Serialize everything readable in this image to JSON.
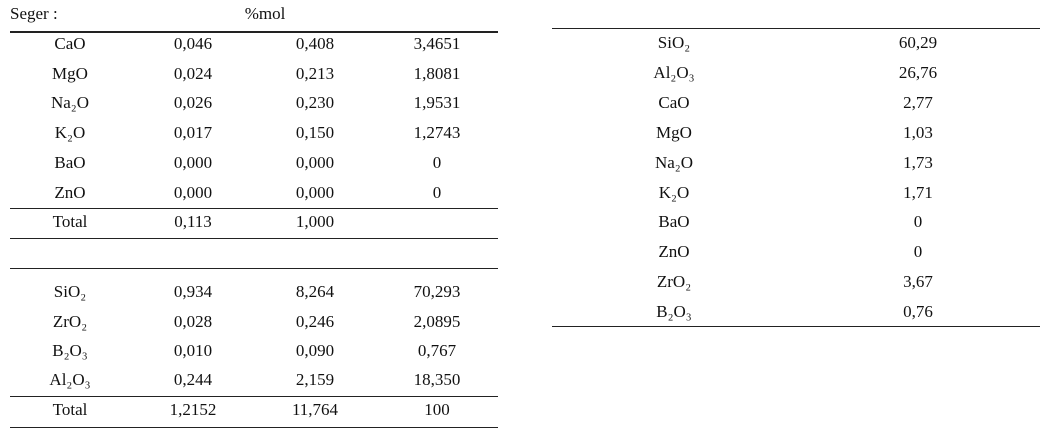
{
  "header": {
    "label": "Seger :",
    "unit": "%mol"
  },
  "left_table": {
    "upper_rows": [
      [
        "CaO",
        "0,046",
        "0,408",
        "3,4651"
      ],
      [
        "MgO",
        "0,024",
        "0,213",
        "1,8081"
      ],
      [
        "Na₂O",
        "0,026",
        "0,230",
        "1,9531"
      ],
      [
        "K₂O",
        "0,017",
        "0,150",
        "1,2743"
      ],
      [
        "BaO",
        "0,000",
        "0,000",
        "0"
      ],
      [
        "ZnO",
        "0,000",
        "0,000",
        "0"
      ]
    ],
    "upper_total": [
      "Total",
      "0,113",
      "1,000"
    ],
    "lower_rows": [
      [
        "SiO₂",
        "0,934",
        "8,264",
        "70,293"
      ],
      [
        "ZrO₂",
        "0,028",
        "0,246",
        "2,0895"
      ],
      [
        "B₂O₃",
        "0,010",
        "0,090",
        "0,767"
      ],
      [
        "Al₂O₃",
        "0,244",
        "2,159",
        "18,350"
      ]
    ],
    "lower_total": [
      "Total",
      "1,2152",
      "11,764",
      "100"
    ]
  },
  "right_table": {
    "rows": [
      [
        "SiO₂",
        "60,29"
      ],
      [
        "Al₂O₃",
        "26,76"
      ],
      [
        "CaO",
        "2,77"
      ],
      [
        "MgO",
        "1,03"
      ],
      [
        "Na₂O",
        "1,73"
      ],
      [
        "K₂O",
        "1,71"
      ],
      [
        "BaO",
        "0"
      ],
      [
        "ZnO",
        "0"
      ],
      [
        "ZrO₂",
        "3,67"
      ],
      [
        "B₂O₃",
        "0,76"
      ]
    ]
  }
}
